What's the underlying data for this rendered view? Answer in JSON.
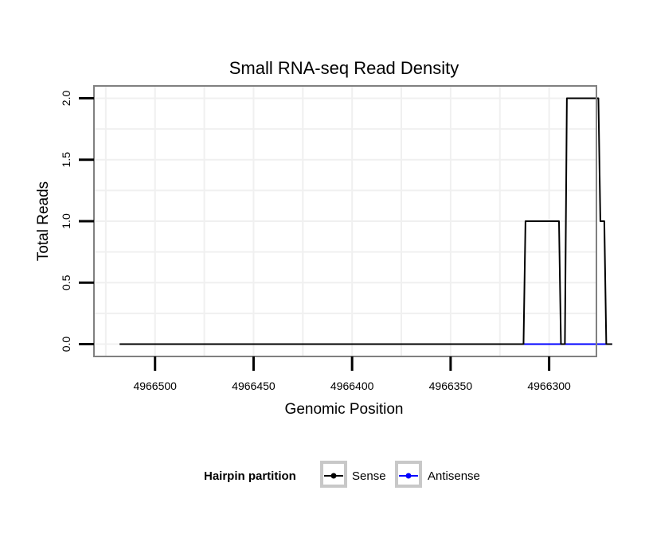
{
  "chart_data": {
    "type": "line",
    "title": "Small RNA-seq Read Density",
    "xlabel": "Genomic Position",
    "ylabel": "Total Reads",
    "x_reversed": true,
    "xlim": [
      4966531,
      4966276
    ],
    "ylim": [
      -0.1,
      2.1
    ],
    "x_ticks": [
      4966500,
      4966450,
      4966400,
      4966350,
      4966300
    ],
    "x_tick_labels": [
      "4966500",
      "4966450",
      "4966400",
      "4966350",
      "4966300"
    ],
    "y_ticks": [
      0,
      0.5,
      1,
      1.5,
      2
    ],
    "y_tick_labels": [
      "0.0",
      "0.5",
      "1.0",
      "1.5",
      "2.0"
    ],
    "grid": true,
    "legend": {
      "title": "Hairpin partition",
      "position": "bottom",
      "entries": [
        {
          "label": "Sense",
          "color": "#000000"
        },
        {
          "label": "Antisense",
          "color": "#0000ff"
        }
      ]
    },
    "series": [
      {
        "name": "Sense",
        "color": "#000000",
        "x": [
          4966518,
          4966313,
          4966312,
          4966295,
          4966294,
          4966292,
          4966291,
          4966275,
          4966274,
          4966272,
          4966271,
          4966268
        ],
        "values": [
          0,
          0,
          1,
          1,
          0,
          0,
          2,
          2,
          1,
          1,
          0,
          0
        ]
      },
      {
        "name": "Antisense",
        "color": "#0000ff",
        "x": [
          4966313,
          4966268
        ],
        "values": [
          0,
          0
        ]
      }
    ]
  }
}
